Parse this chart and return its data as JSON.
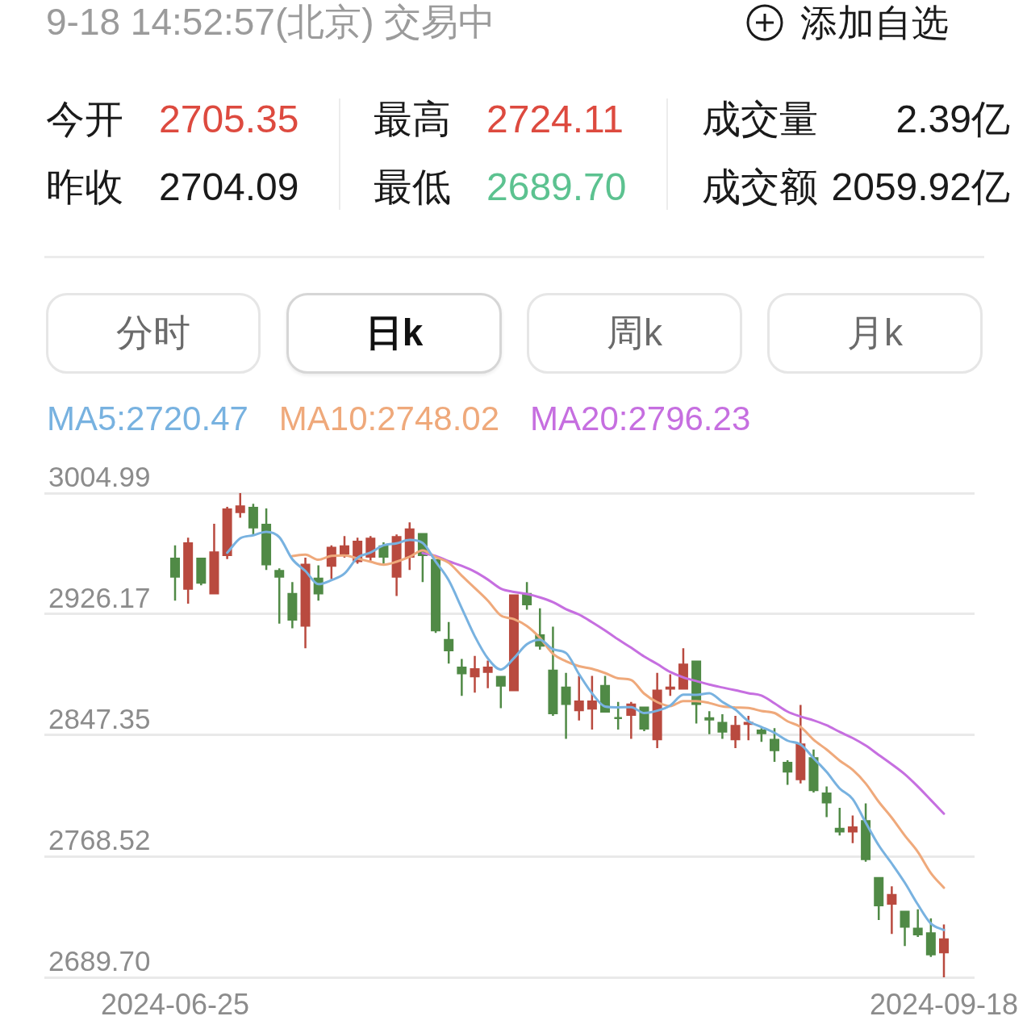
{
  "chart_data": {
    "type": "candlestick",
    "categories": [
      "2024-06-25",
      null,
      null,
      null,
      null,
      null,
      null,
      null,
      null,
      null,
      null,
      null,
      null,
      null,
      null,
      null,
      null,
      null,
      null,
      null,
      null,
      null,
      null,
      null,
      null,
      null,
      null,
      null,
      null,
      null,
      null,
      null,
      null,
      null,
      null,
      null,
      null,
      null,
      null,
      null,
      null,
      null,
      null,
      null,
      null,
      null,
      null,
      null,
      null,
      null,
      null,
      null,
      null,
      null,
      null,
      null,
      null,
      null,
      null,
      "2024-09-18"
    ],
    "ohlc": [
      [
        2963,
        2971,
        2935,
        2950
      ],
      [
        2942,
        2976,
        2933,
        2973
      ],
      [
        2963,
        2963,
        2945,
        2946
      ],
      [
        2939,
        2985,
        2939,
        2967
      ],
      [
        2964,
        2996,
        2962,
        2995
      ],
      [
        2992,
        3004.99,
        2989,
        2997
      ],
      [
        2996,
        2998,
        2978,
        2982
      ],
      [
        2985,
        2995,
        2955,
        2958
      ],
      [
        2955,
        2956,
        2920,
        2950
      ],
      [
        2940,
        2947,
        2917,
        2922
      ],
      [
        2918,
        2963,
        2904,
        2959
      ],
      [
        2950,
        2958,
        2935,
        2939
      ],
      [
        2957,
        2971,
        2949,
        2970
      ],
      [
        2965,
        2977,
        2963,
        2971
      ],
      [
        2960,
        2976,
        2959,
        2974
      ],
      [
        2963,
        2977,
        2961,
        2976
      ],
      [
        2971,
        2973,
        2959,
        2963
      ],
      [
        2950,
        2978,
        2938,
        2977
      ],
      [
        2963,
        2986,
        2955,
        2982
      ],
      [
        2979,
        2979,
        2947,
        2964
      ],
      [
        2962,
        2962,
        2914,
        2915
      ],
      [
        2910,
        2921,
        2894,
        2902
      ],
      [
        2892,
        2897,
        2873,
        2887
      ],
      [
        2885,
        2899,
        2875,
        2891
      ],
      [
        2888,
        2896,
        2878,
        2892
      ],
      [
        2886,
        2886,
        2865,
        2879
      ],
      [
        2876,
        2939,
        2876,
        2939
      ],
      [
        2940,
        2947,
        2929,
        2932
      ],
      [
        2913,
        2930,
        2903,
        2905
      ],
      [
        2890,
        2918,
        2860,
        2861
      ],
      [
        2879,
        2888,
        2845,
        2867
      ],
      [
        2863,
        2886,
        2857,
        2870
      ],
      [
        2864,
        2886,
        2851,
        2870
      ],
      [
        2880,
        2886,
        2862,
        2862
      ],
      [
        2859,
        2869,
        2851,
        2858
      ],
      [
        2860,
        2869,
        2845,
        2868
      ],
      [
        2866,
        2866,
        2850,
        2851
      ],
      [
        2844,
        2888,
        2839,
        2877
      ],
      [
        2877,
        2887,
        2873,
        2879
      ],
      [
        2877,
        2904,
        2877,
        2894
      ],
      [
        2896,
        2896,
        2855,
        2867
      ],
      [
        2859,
        2863,
        2848,
        2857
      ],
      [
        2856,
        2861,
        2845,
        2849
      ],
      [
        2844,
        2860,
        2839,
        2854
      ],
      [
        2854,
        2860,
        2844,
        2856
      ],
      [
        2851,
        2852,
        2843,
        2848
      ],
      [
        2845,
        2852,
        2830,
        2837
      ],
      [
        2830,
        2831,
        2815,
        2823
      ],
      [
        2818,
        2867,
        2816,
        2842
      ],
      [
        2833,
        2838,
        2810,
        2811
      ],
      [
        2810,
        2814,
        2794,
        2803
      ],
      [
        2787,
        2800,
        2782,
        2784
      ],
      [
        2784,
        2795,
        2777,
        2788
      ],
      [
        2792,
        2803,
        2765,
        2766
      ],
      [
        2755,
        2755,
        2727,
        2736
      ],
      [
        2737,
        2749,
        2718,
        2744
      ],
      [
        2733,
        2733,
        2710,
        2722
      ],
      [
        2722,
        2734,
        2716,
        2717
      ],
      [
        2719,
        2728,
        2703,
        2704
      ],
      [
        2705.35,
        2724.11,
        2689.7,
        2715
      ]
    ],
    "colors": [
      "#508a46",
      "#b94a3f",
      "#508a46",
      "#b94a3f",
      "#b94a3f",
      "#b94a3f",
      "#508a46",
      "#508a46",
      "#508a46",
      "#508a46",
      "#b94a3f",
      "#508a46",
      "#b94a3f",
      "#b94a3f",
      "#b94a3f",
      "#b94a3f",
      "#508a46",
      "#b94a3f",
      "#b94a3f",
      "#508a46",
      "#508a46",
      "#508a46",
      "#508a46",
      "#b94a3f",
      "#b94a3f",
      "#508a46",
      "#b94a3f",
      "#508a46",
      "#508a46",
      "#508a46",
      "#508a46",
      "#b94a3f",
      "#b94a3f",
      "#508a46",
      "#508a46",
      "#b94a3f",
      "#508a46",
      "#b94a3f",
      "#b94a3f",
      "#b94a3f",
      "#508a46",
      "#508a46",
      "#508a46",
      "#b94a3f",
      "#b94a3f",
      "#508a46",
      "#508a46",
      "#508a46",
      "#b94a3f",
      "#508a46",
      "#508a46",
      "#508a46",
      "#b94a3f",
      "#508a46",
      "#508a46",
      "#b94a3f",
      "#508a46",
      "#508a46",
      "#508a46",
      "#b94a3f"
    ],
    "series": [
      {
        "type": "line",
        "name": "MA5:2720.47",
        "color": "#78b2e0",
        "values": [
          null,
          null,
          null,
          null,
          2966.1,
          2975.5,
          2977.5,
          2979.8,
          2976.3,
          2961.9,
          2954.3,
          2945.7,
          2948.3,
          2952.6,
          2962.9,
          2966.3,
          2971.0,
          2972.3,
          2974.5,
          2972.6,
          2960.4,
          2948.2,
          2930.1,
          2911.8,
          2897.4,
          2890.1,
          2897.5,
          2906.6,
          2909.5,
          2903.3,
          2900.9,
          2887.1,
          2874.6,
          2866.0,
          2865.5,
          2865.6,
          2861.8,
          2863.3,
          2866.7,
          2873.8,
          2873.6,
          2874.7,
          2869.0,
          2864.0,
          2856.4,
          2852.7,
          2848.9,
          2843.8,
          2841.3,
          2832.4,
          2823.4,
          2812.7,
          2805.8,
          2790.5,
          2775.6,
          2763.8,
          2751.3,
          2737.1,
          2724.7,
          2720.47
        ]
      },
      {
        "type": "line",
        "name": "MA10:2748.02",
        "color": "#efa97b",
        "values": [
          null,
          null,
          null,
          null,
          null,
          null,
          null,
          null,
          null,
          2964.0,
          2964.9,
          2961.6,
          2964.1,
          2964.4,
          2962.4,
          2960.3,
          2958.4,
          2960.3,
          2963.5,
          2967.7,
          2963.3,
          2959.6,
          2951.2,
          2943.2,
          2935.0,
          2925.3,
          2922.9,
          2918.4,
          2910.7,
          2900.3,
          2895.5,
          2892.3,
          2890.6,
          2887.8,
          2884.4,
          2883.3,
          2874.4,
          2868.9,
          2866.3,
          2869.6,
          2869.6,
          2868.3,
          2866.1,
          2865.4,
          2865.1,
          2863.1,
          2861.8,
          2856.4,
          2852.7,
          2844.4,
          2838.0,
          2830.8,
          2824.8,
          2815.9,
          2804.0,
          2793.6,
          2782.0,
          2771.4,
          2757.6,
          2748.02
        ]
      },
      {
        "type": "line",
        "name": "MA20:2796.23",
        "color": "#c66fe0",
        "values": [
          null,
          null,
          null,
          null,
          null,
          null,
          null,
          null,
          null,
          null,
          null,
          null,
          null,
          null,
          null,
          null,
          null,
          null,
          null,
          2965.9,
          2964.1,
          2960.6,
          2957.6,
          2953.8,
          2948.7,
          2942.8,
          2940.6,
          2939.3,
          2937.1,
          2934.0,
          2929.4,
          2925.9,
          2920.9,
          2915.5,
          2909.7,
          2904.3,
          2898.6,
          2893.7,
          2888.5,
          2885.0,
          2882.6,
          2880.3,
          2878.4,
          2876.6,
          2874.7,
          2873.2,
          2868.1,
          2862.7,
          2859.5,
          2857.0,
          2853.8,
          2849.5,
          2845.5,
          2840.6,
          2834.5,
          2828.4,
          2821.9,
          2813.9,
          2805.1,
          2796.23
        ]
      }
    ],
    "ylim": [
      2689.7,
      3004.99
    ],
    "yticks": [
      {
        "value": 2689.7,
        "label": "2689.70"
      },
      2768.52,
      2847.35,
      2926.17,
      3004.99
    ],
    "grid": "y",
    "legend": "top left",
    "annotations": [
      "9-18 14:52:57(北京) 交易中",
      "添加自选",
      "今开",
      "2705.35",
      "昨收",
      "2704.09",
      "最高",
      "2724.11",
      "最低",
      "2689.70",
      "成交量",
      "2.39亿",
      "成交额",
      "2059.92亿",
      "分时",
      "日k",
      "周k",
      "月k"
    ]
  }
}
